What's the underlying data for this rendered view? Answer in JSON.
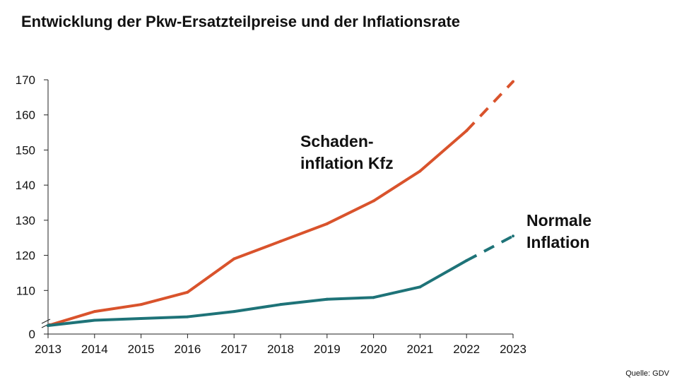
{
  "chart_data": {
    "type": "line",
    "title": "Entwicklung der Pkw-Ersatzteilpreise und der Inflationsrate",
    "xlabel": "",
    "ylabel": "",
    "x": [
      "2013",
      "2014",
      "2015",
      "2016",
      "2017",
      "2018",
      "2019",
      "2020",
      "2021",
      "2022",
      "2023"
    ],
    "yticks": [
      "0",
      "110",
      "120",
      "130",
      "140",
      "150",
      "160",
      "170"
    ],
    "ylim": [
      100,
      170
    ],
    "axis_break": true,
    "series": [
      {
        "name": "Schaden-inflation Kfz",
        "label_lines": [
          "Schaden-",
          "inflation Kfz"
        ],
        "color": "#d9532c",
        "values": [
          100,
          104,
          106,
          109.5,
          119,
          124,
          129,
          135.5,
          144,
          155.5,
          169.5
        ],
        "projected_from_index": 9
      },
      {
        "name": "Normale Inflation",
        "label_lines": [
          "Normale",
          "Inflation"
        ],
        "color": "#1e7378",
        "values": [
          100,
          101.5,
          102,
          102.5,
          104,
          106,
          107.5,
          108,
          111,
          118.5,
          125.5
        ],
        "projected_from_index": 9
      }
    ],
    "source": "Quelle: GDV"
  }
}
